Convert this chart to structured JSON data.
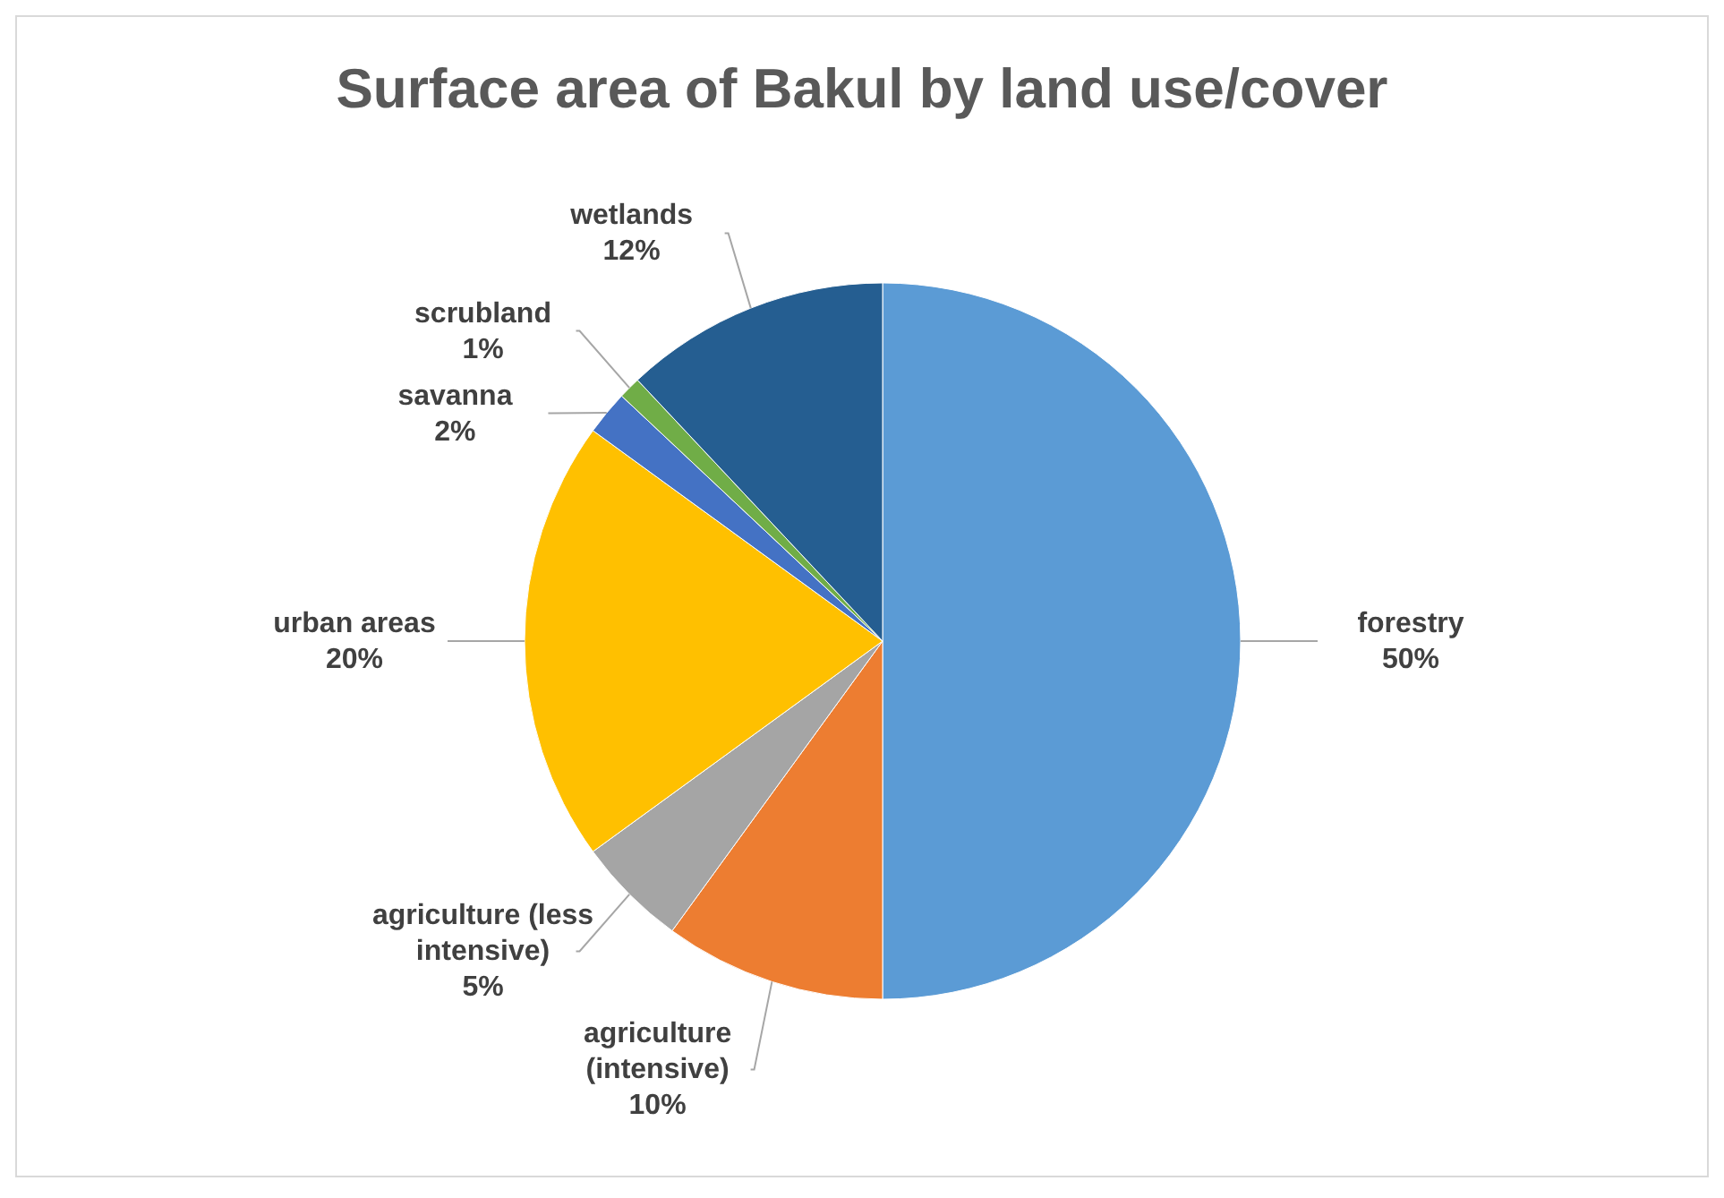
{
  "chart_data": {
    "type": "pie",
    "title": "Surface area of Bakul by land use/cover",
    "categories": [
      "forestry",
      "agriculture (intensive)",
      "agriculture (less intensive)",
      "urban areas",
      "savanna",
      "scrubland",
      "wetlands"
    ],
    "values": [
      50,
      10,
      5,
      20,
      2,
      1,
      12
    ],
    "value_labels": [
      "50%",
      "10%",
      "5%",
      "20%",
      "2%",
      "1%",
      "12%"
    ],
    "colors": [
      "#5b9bd5",
      "#ed7d31",
      "#a5a5a5",
      "#ffc000",
      "#4472c4",
      "#70ad47",
      "#255e91"
    ]
  }
}
